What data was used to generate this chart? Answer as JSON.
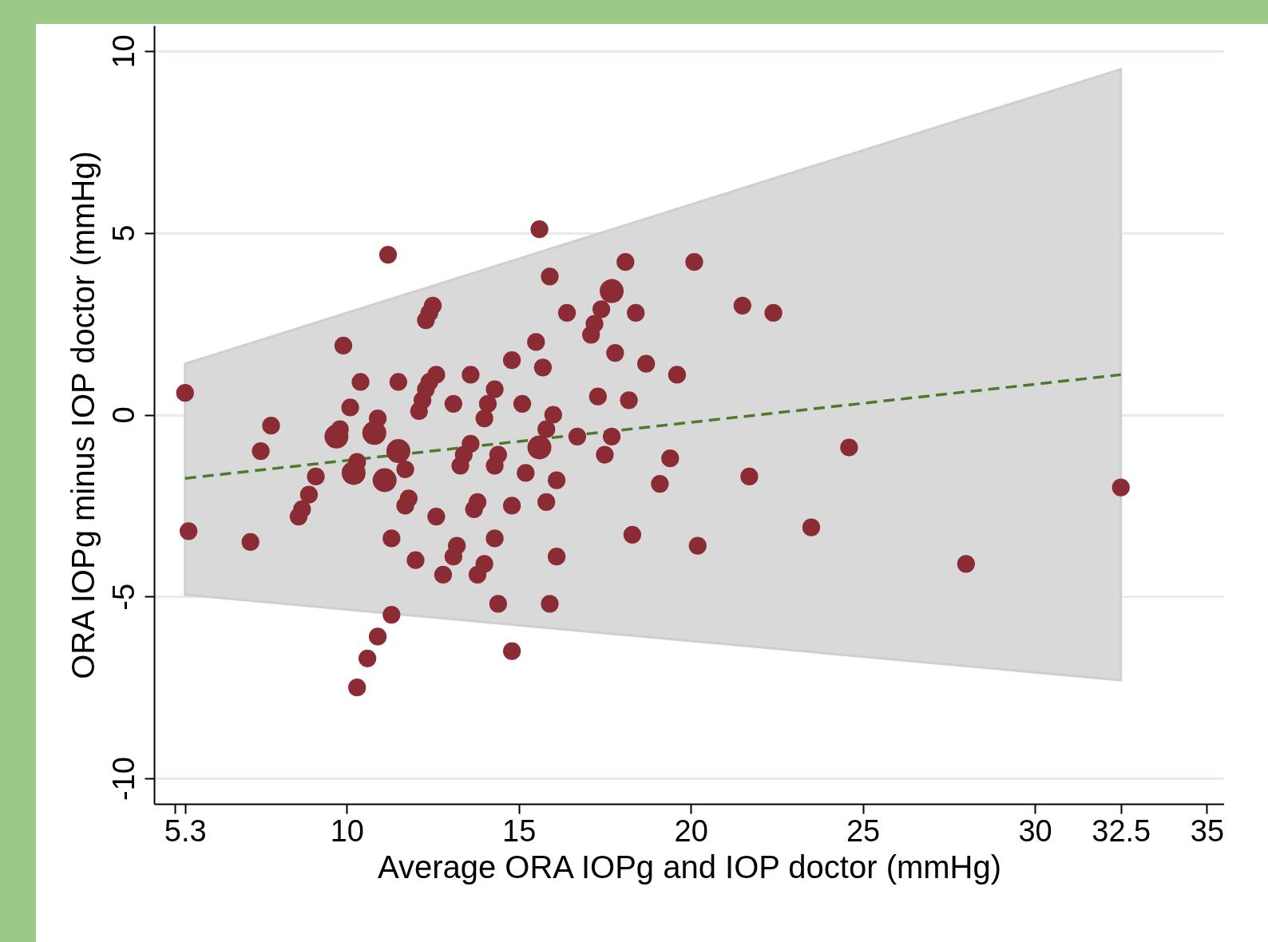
{
  "chart_data": {
    "type": "bubble",
    "xlabel": "Average ORA IOPg and IOP doctor (mmHg)",
    "ylabel": "ORA IOPg minus IOP doctor (mmHg)",
    "xlim": [
      4.4,
      35.5
    ],
    "xticks": [
      {
        "value": 5,
        "label": null
      },
      5.3,
      10,
      15,
      20,
      25,
      30,
      32.5,
      35
    ],
    "ylim": [
      -10.7,
      10.7
    ],
    "yticks": [
      -10,
      -5,
      0,
      5,
      10
    ],
    "grid": "y",
    "legend": false,
    "series": [
      {
        "type": "bubble",
        "color": "#8b2c34",
        "x": [
          5.3,
          5.4,
          7.2,
          7.5,
          7.8,
          8.6,
          8.7,
          8.9,
          9.1,
          9.9,
          10.1,
          9.7,
          9.8,
          10.2,
          10.3,
          10.4,
          10.3,
          10.6,
          10.9,
          11.3,
          11.3,
          10.8,
          10.9,
          11.1,
          11.2,
          11.5,
          11.5,
          11.7,
          11.7,
          11.8,
          12.0,
          12.1,
          12.2,
          12.3,
          12.4,
          12.6,
          12.3,
          12.4,
          12.5,
          12.6,
          12.8,
          13.1,
          13.2,
          13.1,
          13.3,
          13.4,
          13.6,
          13.6,
          13.7,
          13.8,
          13.8,
          14.0,
          14.0,
          14.1,
          14.3,
          14.3,
          14.4,
          14.3,
          14.4,
          14.8,
          14.8,
          14.8,
          15.1,
          15.2,
          15.5,
          15.6,
          15.6,
          15.7,
          15.8,
          15.8,
          15.9,
          15.9,
          16.0,
          16.1,
          16.1,
          16.4,
          16.7,
          17.1,
          17.2,
          17.3,
          17.4,
          17.5,
          17.7,
          17.7,
          17.8,
          18.1,
          18.2,
          18.3,
          18.4,
          18.7,
          19.1,
          19.4,
          19.6,
          20.1,
          20.2,
          21.5,
          21.7,
          22.4,
          23.5,
          24.6,
          28.0,
          32.5
        ],
        "values": [
          0.6,
          -3.2,
          -3.5,
          -1.0,
          -0.3,
          -2.8,
          -2.6,
          -2.2,
          -1.7,
          1.9,
          0.2,
          -0.6,
          -0.4,
          -1.6,
          -1.3,
          0.9,
          -7.5,
          -6.7,
          -6.1,
          -5.5,
          -3.4,
          -0.5,
          -0.1,
          -1.8,
          4.4,
          0.9,
          -1.0,
          -1.5,
          -2.5,
          -2.3,
          -4.0,
          0.1,
          0.4,
          0.7,
          0.9,
          1.1,
          2.6,
          2.8,
          3.0,
          -2.8,
          -4.4,
          -3.9,
          -3.6,
          0.3,
          -1.4,
          -1.1,
          -0.8,
          1.1,
          -2.6,
          -2.4,
          -4.4,
          -4.1,
          -0.1,
          0.3,
          0.7,
          -1.4,
          -1.1,
          -3.4,
          -5.2,
          1.5,
          -2.5,
          -6.5,
          0.3,
          -1.6,
          2.0,
          5.1,
          -0.9,
          1.3,
          -0.4,
          -2.4,
          3.8,
          -5.2,
          0.0,
          -3.9,
          -1.8,
          2.8,
          -0.6,
          2.2,
          2.5,
          0.5,
          2.9,
          -1.1,
          3.4,
          -0.6,
          1.7,
          4.2,
          0.4,
          -3.3,
          2.8,
          1.4,
          -1.9,
          -1.2,
          1.1,
          4.2,
          -3.6,
          3.0,
          -1.7,
          2.8,
          -3.1,
          -0.9,
          -4.1,
          -2.0
        ],
        "sizes": [
          0.55,
          0.55,
          0.55,
          0.55,
          0.55,
          0.55,
          0.55,
          0.55,
          0.55,
          0.55,
          0.55,
          1,
          0.55,
          1,
          0.55,
          0.55,
          0.55,
          0.55,
          0.55,
          0.55,
          0.55,
          1,
          0.55,
          1,
          0.55,
          0.55,
          1,
          0.55,
          0.55,
          0.55,
          0.55,
          0.55,
          0.55,
          0.55,
          0.55,
          0.55,
          0.55,
          0.55,
          0.55,
          0.55,
          0.55,
          0.55,
          0.55,
          0.55,
          0.55,
          0.55,
          0.55,
          0.55,
          0.55,
          0.55,
          0.55,
          0.55,
          0.55,
          0.55,
          0.55,
          0.55,
          0.55,
          0.55,
          0.55,
          0.55,
          0.55,
          0.55,
          0.55,
          0.55,
          0.55,
          0.55,
          1,
          0.55,
          0.55,
          0.55,
          0.55,
          0.55,
          0.55,
          0.55,
          0.55,
          0.55,
          0.55,
          0.55,
          0.55,
          0.55,
          0.55,
          0.55,
          1,
          0.55,
          0.55,
          0.55,
          0.55,
          0.55,
          0.55,
          0.55,
          0.55,
          0.55,
          0.55,
          0.55,
          0.55,
          0.55,
          0.55,
          0.55,
          0.55,
          0.55,
          0.55,
          0.55
        ]
      },
      {
        "type": "line",
        "color": "#4e7a2e",
        "line_style": "dashed",
        "x": [
          5.3,
          32.5
        ],
        "values": [
          -1.75,
          1.1
        ],
        "lower": [
          -4.95,
          -7.3
        ],
        "upper": [
          1.4,
          9.5
        ]
      }
    ]
  }
}
